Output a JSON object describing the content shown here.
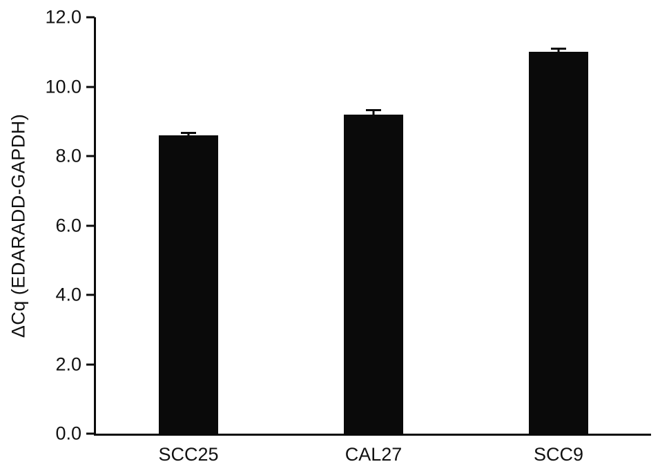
{
  "chart_data": {
    "type": "bar",
    "title": "",
    "categories": [
      "SCC25",
      "CAL27",
      "SCC9"
    ],
    "values": [
      8.6,
      9.2,
      11.0
    ],
    "errors": [
      0.1,
      0.15,
      0.12
    ],
    "xlabel": "",
    "ylabel": "ΔCq (EDARADD-GAPDH)",
    "ylim": [
      0,
      12
    ],
    "ytick_step": 2,
    "ytick_labels": [
      "0.0",
      "2.0",
      "4.0",
      "6.0",
      "8.0",
      "10.0",
      "12.0"
    ],
    "bar_color": "#0a0a0a",
    "grid": false,
    "legend": "none"
  }
}
